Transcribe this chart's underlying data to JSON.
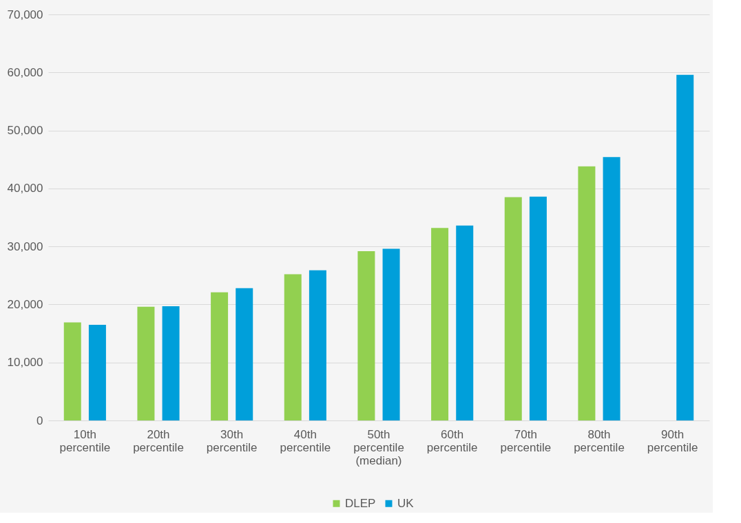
{
  "chart_data": {
    "type": "bar",
    "categories": [
      "10th percentile",
      "20th percentile",
      "30th percentile",
      "40th percentile",
      "50th percentile (median)",
      "60th percentile",
      "70th percentile",
      "80th percentile",
      "90th percentile"
    ],
    "series": [
      {
        "name": "DLEP",
        "color": "#92d050",
        "values": [
          16900,
          19600,
          22100,
          25200,
          29200,
          33200,
          38500,
          43800,
          null
        ]
      },
      {
        "name": "UK",
        "color": "#009fda",
        "values": [
          16500,
          19700,
          22800,
          25900,
          29600,
          33600,
          38600,
          45400,
          59600
        ]
      }
    ],
    "ylim": [
      0,
      70000
    ],
    "yticks": [
      0,
      {
        "value": 10000,
        "label": "10,000"
      },
      {
        "value": 20000,
        "label": "20,000"
      },
      {
        "value": 30000,
        "label": "30,000"
      },
      {
        "value": 40000,
        "label": "40,000"
      },
      {
        "value": 50000,
        "label": "50,000"
      },
      {
        "value": 60000,
        "label": "60,000"
      },
      {
        "value": 70000,
        "label": "70,000"
      }
    ],
    "grid": "y",
    "legend": "bottom"
  }
}
